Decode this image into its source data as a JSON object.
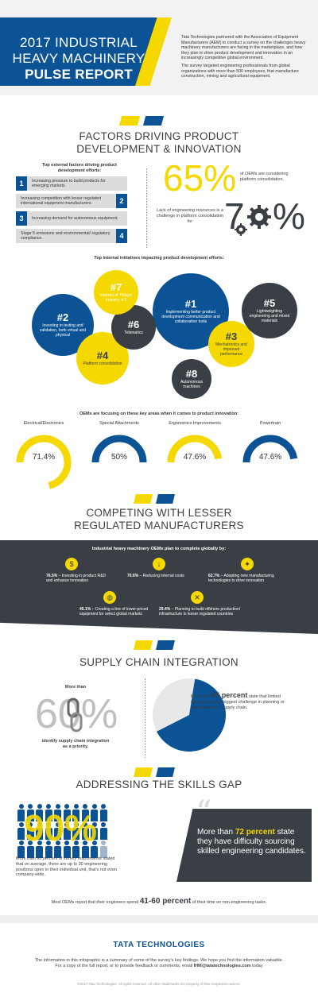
{
  "header": {
    "title_line1": "2017 INDUSTRIAL",
    "title_line2": "HEAVY MACHINERY",
    "title_line3": "PULSE REPORT",
    "intro_p1": "Tata Technologies partnered with the Association of Equipment Manufacturers (AEM) to conduct a survey on the challenges heavy machinery manufacturers are facing in the marketplace, and how they plan to drive product development and innovation in an increasingly competitive global environment.",
    "intro_p2": "The survey targeted engineering professionals from global organizations with more than 500 employees, that manufacture construction, mining and agricultural equipment."
  },
  "factors": {
    "title_line1": "FACTORS DRIVING PRODUCT",
    "title_line2": "DEVELOPMENT & INNOVATION",
    "external_heading": "Top external factors driving product development efforts:",
    "external": [
      {
        "num": "1",
        "text": "Increasing pressure to build products for emerging markets."
      },
      {
        "num": "2",
        "text": "Increasing competition with lesser regulated international equipment manufacturers."
      },
      {
        "num": "3",
        "text": "Increasing demand for autonomous equipment."
      },
      {
        "num": "4",
        "text": "Stage 5 emissions and environmental/ regulatory compliance."
      }
    ],
    "stat1_value": "65%",
    "stat1_text": "of OEMs are considering platform consolidation.",
    "stat2_text": "Lack of engineering resources is a challenge in platform consolidation for",
    "stat2_value_a": "7",
    "stat2_value_b": "%",
    "internal_heading": "Top internal initiatives impacting product development efforts:",
    "internal": [
      {
        "num": "#1",
        "text": "Implementing better product development communication and collaboration tools"
      },
      {
        "num": "#2",
        "text": "Investing in testing and validation, both virtual and physical"
      },
      {
        "num": "#3",
        "text": "Mechatronics and improved performance"
      },
      {
        "num": "#4",
        "text": "Platform consolidation"
      },
      {
        "num": "#5",
        "text": "Lightweighting engineering and mixed materials"
      },
      {
        "num": "#6",
        "text": "Telematics"
      },
      {
        "num": "#7",
        "text": "Internet of Things/ Industry 4.0"
      },
      {
        "num": "#8",
        "text": "Autonomous machines"
      }
    ],
    "focus_heading": "OEMs are focusing on these key areas when it comes to product innovation:"
  },
  "chart_data": {
    "type": "pie",
    "categories": [
      "Electrical/Electronics",
      "Special Attachments",
      "Ergonomics Improvements",
      "Powertrain"
    ],
    "values": [
      71.4,
      50,
      47.6,
      47.6
    ],
    "value_labels": [
      "71.4%",
      "50%",
      "47.6%",
      "47.6%"
    ],
    "colors": [
      "#f5d800",
      "#0b5394",
      "#f5d800",
      "#0b5394"
    ]
  },
  "compete": {
    "title_line1": "COMPETING WITH LESSER",
    "title_line2": "REGULATED MANUFACTURERS",
    "heading": "Industrial heavy machinery OEMs plan to complete globally by:",
    "items": [
      {
        "pct": "76.5%",
        "text": " – Investing in product R&D and enhance innovation",
        "icon": "money-icon"
      },
      {
        "pct": "70.6%",
        "text": " – Reducing internal costs",
        "icon": "down-arrow-icon"
      },
      {
        "pct": "62.7%",
        "text": " – Adopting new manufacturing technologies to drive innovation",
        "icon": "lightbulb-icon"
      },
      {
        "pct": "45.1%",
        "text": " – Creating a line of lower-priced equipment for select global markets",
        "icon": "globe-icon"
      },
      {
        "pct": "29.4%",
        "text": " – Planning to build offshore production/ infrastructure in lesser regulated countries",
        "icon": "tools-icon"
      }
    ]
  },
  "supply": {
    "title": "SUPPLY CHAIN INTEGRATION",
    "more_than": "More than",
    "value": "60%",
    "text": "identify supply chain integration as a priority.",
    "pie_prefix": "More than ",
    "pie_value": "65 percent",
    "pie_text": " state that limited resources is the biggest challenge in planning or integrating their supply chain.",
    "pie_pct": 65
  },
  "skills": {
    "title": "ADDRESSING THE SKILLS GAP",
    "big_value": "90%",
    "people_text": "More than 90 percent of survey respondents stated that on average, there are up to 30 engineering positions open in their individual unit, that's not even company-wide.",
    "quote_prefix": "More than ",
    "quote_value": "72 percent",
    "quote_text": " state they have difficulty sourcing skilled engineering candidates.",
    "bottom_prefix": "Most OEMs report that their engineers spend ",
    "bottom_value": "41-60 percent",
    "bottom_suffix": " of their time on non-engineering tasks."
  },
  "footer": {
    "logo": "TATA TECHNOLOGIES",
    "text": "The information in this infographic is a summary of some of the survey's key findings. We hope you find the information valuable. For a copy of the full report, or to provide feedback or comments, email ",
    "email": "IHM@tatatechnologies.com",
    "text_end": " today",
    "copyright": "©2017 Tata Technologies. All rights reserved. All other trademarks are property of their respective owners."
  }
}
